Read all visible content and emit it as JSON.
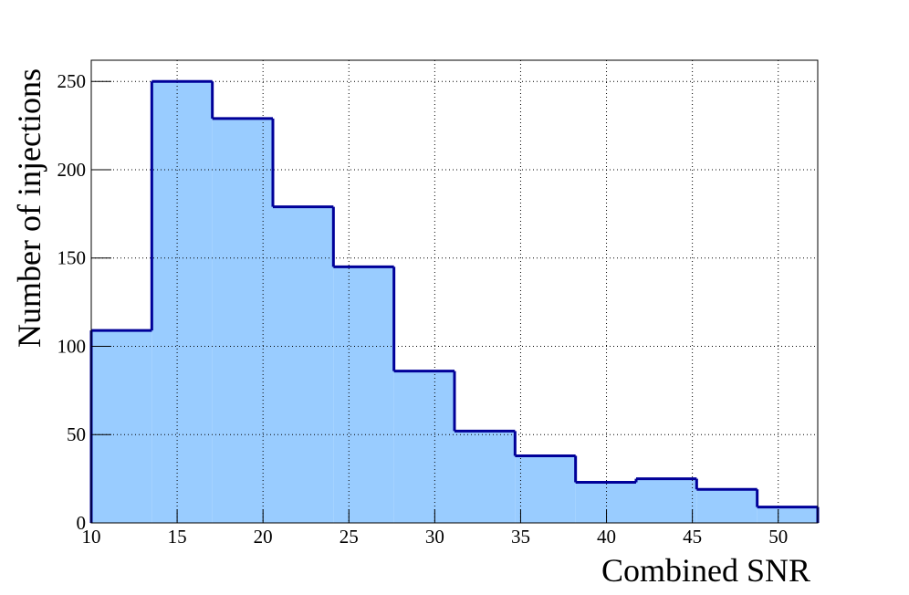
{
  "chart_data": {
    "type": "histogram",
    "x_label": "Combined SNR",
    "y_label": "Number of injections",
    "bins": [
      10,
      13.525,
      17.05,
      20.575,
      24.1,
      27.625,
      31.15,
      34.675,
      38.2,
      41.725,
      45.25,
      48.775,
      52.3
    ],
    "values": [
      109,
      250,
      229,
      179,
      145,
      86,
      52,
      38,
      23,
      25,
      19,
      9
    ],
    "fill_color": "#99ccff",
    "line_color": "#000099",
    "xlim": [
      10,
      52.3
    ],
    "ylim": [
      0,
      262
    ],
    "xticks": [
      10,
      15,
      20,
      25,
      30,
      35,
      40,
      45,
      50
    ],
    "yticks": [
      0,
      50,
      100,
      150,
      200,
      250
    ],
    "grid": true
  }
}
